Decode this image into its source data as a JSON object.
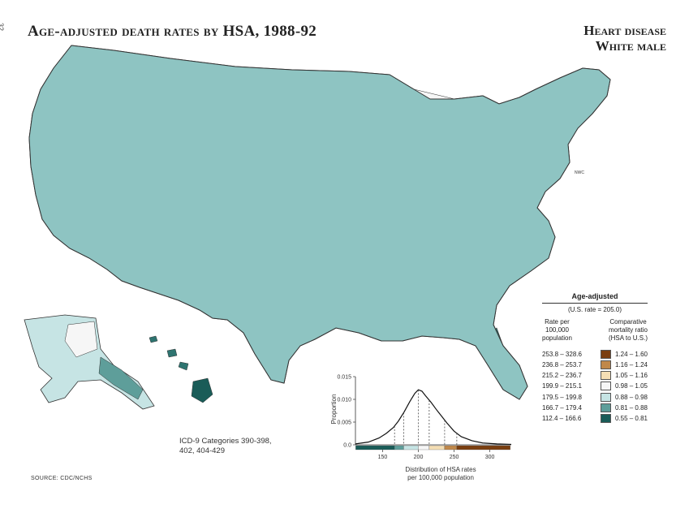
{
  "page_number": "32",
  "title": "Age-adjusted death rates by HSA, 1988-92",
  "topic": {
    "line1": "Heart disease",
    "line2": "White male"
  },
  "icd": {
    "line1": "ICD-9 Categories 390-398,",
    "line2": "402, 404-429"
  },
  "source": "SOURCE: CDC/NCHS",
  "nwc_label": "NWC",
  "legend": {
    "title": "Age-adjusted",
    "us_rate": "(U.S. rate = 205.0)",
    "rate_header": [
      "Rate per",
      "100,000",
      "population"
    ],
    "ratio_header": [
      "Comparative",
      "mortality ratio",
      "(HSA to U.S.)"
    ],
    "rows": [
      {
        "rate": "253.8 – 328.6",
        "ratio": "1.24 – 1.60",
        "color": "#7a3e10"
      },
      {
        "rate": "236.8 – 253.7",
        "ratio": "1.16 – 1.24",
        "color": "#c0884a"
      },
      {
        "rate": "215.2 – 236.7",
        "ratio": "1.05 – 1.16",
        "color": "#f4deb4"
      },
      {
        "rate": "199.9 – 215.1",
        "ratio": "0.98 – 1.05",
        "color": "#f6f6f6"
      },
      {
        "rate": "179.5 – 199.8",
        "ratio": "0.88 – 0.98",
        "color": "#c6e4e4"
      },
      {
        "rate": "166.7 – 179.4",
        "ratio": "0.81 – 0.88",
        "color": "#5e9e9a"
      },
      {
        "rate": "112.4 – 166.6",
        "ratio": "0.55 – 0.81",
        "color": "#1a5c58"
      }
    ]
  },
  "chart_data": {
    "type": "area",
    "ylabel": "Proportion",
    "xlabel": "Distribution of HSA rates per 100,000 population",
    "xlabel_line1": "Distribution of HSA rates",
    "xlabel_line2": "per 100,000 population",
    "xlim": [
      112,
      330
    ],
    "ylim": [
      0,
      0.015
    ],
    "x_ticks": [
      150,
      200,
      250,
      300
    ],
    "y_ticks": [
      0.0,
      0.005,
      0.01,
      0.015
    ],
    "y_tick_labels": [
      "0.0",
      "0.005",
      "0.010",
      "0.015"
    ],
    "x": [
      112,
      130,
      145,
      155,
      165,
      172,
      180,
      188,
      195,
      200,
      205,
      210,
      218,
      225,
      232,
      240,
      250,
      260,
      275,
      290,
      310,
      330
    ],
    "y": [
      0.0002,
      0.0006,
      0.0015,
      0.0025,
      0.0038,
      0.0052,
      0.0072,
      0.0095,
      0.0113,
      0.0121,
      0.0118,
      0.0108,
      0.0093,
      0.0078,
      0.0064,
      0.0048,
      0.003,
      0.0018,
      0.0009,
      0.0004,
      0.0002,
      0.0001
    ],
    "class_breaks": [
      166.7,
      179.5,
      199.9,
      215.2,
      236.8,
      253.8
    ],
    "bar_segments": [
      {
        "from": 112.4,
        "to": 166.6,
        "color": "#1a5c58"
      },
      {
        "from": 166.7,
        "to": 179.4,
        "color": "#5e9e9a"
      },
      {
        "from": 179.5,
        "to": 199.8,
        "color": "#c6e4e4"
      },
      {
        "from": 199.9,
        "to": 215.1,
        "color": "#f6f6f6"
      },
      {
        "from": 215.2,
        "to": 236.7,
        "color": "#f4deb4"
      },
      {
        "from": 236.8,
        "to": 253.7,
        "color": "#c0884a"
      },
      {
        "from": 253.8,
        "to": 328.6,
        "color": "#7a3e10"
      }
    ]
  }
}
